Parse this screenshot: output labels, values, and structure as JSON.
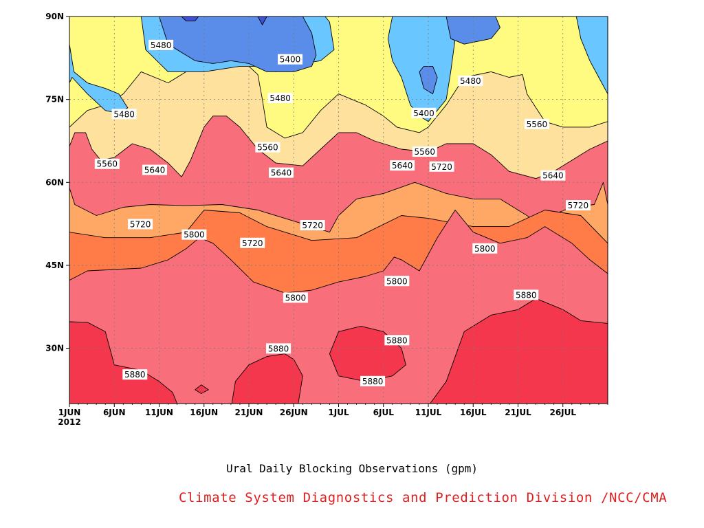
{
  "chart_data": {
    "type": "contour",
    "title": "Ural Daily Blocking Observations (gpm)",
    "credit": "Climate System Diagnostics and Prediction Division /NCC/CMA",
    "x_ticks": [
      "1JUN",
      "6JUN",
      "11JUN",
      "16JUN",
      "21JUN",
      "26JUN",
      "1JUL",
      "6JUL",
      "11JUL",
      "16JUL",
      "21JUL",
      "26JUL"
    ],
    "x_tick_days": [
      1,
      6,
      11,
      16,
      21,
      26,
      31,
      36,
      41,
      46,
      51,
      56
    ],
    "x_year_label": "2012",
    "xlim": [
      1,
      61
    ],
    "y_ticks": [
      "30N",
      "45N",
      "60N",
      "75N",
      "90N"
    ],
    "y_tick_lats": [
      30,
      45,
      60,
      75,
      90
    ],
    "ylim": [
      20,
      90
    ],
    "grid": "dotted",
    "contour_levels": [
      5400,
      5480,
      5560,
      5640,
      5720,
      5800,
      5880
    ],
    "level_colors": {
      "below_5400": "#5a8cea",
      "5400_5480": "#6ac6ff",
      "5480_5560": "#fffb80",
      "5560_5640": "#ffe19e",
      "5640_5720": "#ffa866",
      "5720_5800": "#ff7c48",
      "5800_5880": "#f86e7a",
      "above_5880": "#f5374d",
      "darkest": "#3f50d9"
    },
    "contour_labels": [
      {
        "text": "5480",
        "day": 11.2,
        "lat": 84.8
      },
      {
        "text": "5400",
        "day": 25.6,
        "lat": 82.2
      },
      {
        "text": "5480",
        "day": 24.5,
        "lat": 75.2
      },
      {
        "text": "5480",
        "day": 7.1,
        "lat": 72.3
      },
      {
        "text": "5400",
        "day": 40.5,
        "lat": 72.5
      },
      {
        "text": "5480",
        "day": 45.7,
        "lat": 78.3
      },
      {
        "text": "5560",
        "day": 23.1,
        "lat": 66.3
      },
      {
        "text": "5560",
        "day": 40.6,
        "lat": 65.5
      },
      {
        "text": "5560",
        "day": 53.1,
        "lat": 70.5
      },
      {
        "text": "5560",
        "day": 5.2,
        "lat": 63.3
      },
      {
        "text": "5640",
        "day": 10.5,
        "lat": 62.2
      },
      {
        "text": "5640",
        "day": 24.6,
        "lat": 61.7
      },
      {
        "text": "5640",
        "day": 38.1,
        "lat": 63.0
      },
      {
        "text": "5720",
        "day": 42.5,
        "lat": 62.8
      },
      {
        "text": "5640",
        "day": 54.9,
        "lat": 61.2
      },
      {
        "text": "5720",
        "day": 8.9,
        "lat": 52.4
      },
      {
        "text": "5800",
        "day": 14.9,
        "lat": 50.5
      },
      {
        "text": "5720",
        "day": 21.4,
        "lat": 49.0
      },
      {
        "text": "5720",
        "day": 28.1,
        "lat": 52.2
      },
      {
        "text": "5720",
        "day": 57.7,
        "lat": 55.8
      },
      {
        "text": "5800",
        "day": 47.3,
        "lat": 48.0
      },
      {
        "text": "5800",
        "day": 37.5,
        "lat": 42.1
      },
      {
        "text": "5800",
        "day": 26.2,
        "lat": 39.1
      },
      {
        "text": "5880",
        "day": 51.9,
        "lat": 39.6
      },
      {
        "text": "5880",
        "day": 37.5,
        "lat": 31.4
      },
      {
        "text": "5880",
        "day": 24.3,
        "lat": 29.9
      },
      {
        "text": "5880",
        "day": 8.3,
        "lat": 25.2
      },
      {
        "text": "5880",
        "day": 34.8,
        "lat": 24.0
      }
    ],
    "regions": [
      {
        "level": "5640_5720",
        "points": [
          [
            1,
            20
          ],
          [
            1,
            59
          ],
          [
            1.6,
            56
          ],
          [
            4,
            54
          ],
          [
            7,
            55.5
          ],
          [
            10,
            56
          ],
          [
            14,
            55.8
          ],
          [
            18,
            56
          ],
          [
            22,
            55
          ],
          [
            26,
            53
          ],
          [
            30,
            51
          ],
          [
            31,
            54
          ],
          [
            33,
            57
          ],
          [
            36,
            58
          ],
          [
            39.5,
            60
          ],
          [
            43,
            58
          ],
          [
            46,
            57
          ],
          [
            49,
            57
          ],
          [
            51,
            55
          ],
          [
            53,
            53
          ],
          [
            57,
            55.5
          ],
          [
            59.5,
            56
          ],
          [
            60.5,
            60
          ],
          [
            61,
            56
          ],
          [
            61,
            20
          ]
        ]
      },
      {
        "level": "5720_5800",
        "points": [
          [
            1,
            20
          ],
          [
            1,
            51
          ],
          [
            5,
            50
          ],
          [
            10,
            50
          ],
          [
            14,
            51
          ],
          [
            16,
            55
          ],
          [
            20,
            54.5
          ],
          [
            23,
            52
          ],
          [
            28,
            49.5
          ],
          [
            33,
            50
          ],
          [
            38,
            54
          ],
          [
            41,
            53.5
          ],
          [
            46,
            52
          ],
          [
            50,
            52
          ],
          [
            54,
            55
          ],
          [
            58,
            54
          ],
          [
            61,
            49
          ],
          [
            61,
            20
          ]
        ]
      },
      {
        "level": "5800_5880",
        "points": [
          [
            1,
            20
          ],
          [
            1,
            42.3
          ],
          [
            3,
            44
          ],
          [
            9,
            44.5
          ],
          [
            12,
            46
          ],
          [
            14,
            48
          ],
          [
            15.5,
            50
          ],
          [
            17,
            49
          ],
          [
            19,
            46
          ],
          [
            21.5,
            42
          ],
          [
            25,
            40
          ],
          [
            28,
            40.5
          ],
          [
            31,
            42
          ],
          [
            34,
            43
          ],
          [
            36,
            44
          ],
          [
            37.2,
            46.5
          ],
          [
            38,
            46
          ],
          [
            40,
            44
          ],
          [
            42,
            50
          ],
          [
            44,
            55
          ],
          [
            46,
            51
          ],
          [
            49,
            49
          ],
          [
            52,
            50
          ],
          [
            54,
            52
          ],
          [
            57,
            49
          ],
          [
            59,
            46
          ],
          [
            61,
            43.5
          ],
          [
            61,
            20
          ]
        ]
      },
      {
        "level": "above_5880",
        "points": [
          [
            1,
            20
          ],
          [
            1,
            34.8
          ],
          [
            3,
            34.7
          ],
          [
            5,
            33
          ],
          [
            6,
            27
          ],
          [
            9,
            26
          ],
          [
            11,
            24
          ],
          [
            12.5,
            22
          ],
          [
            13,
            20
          ]
        ]
      },
      {
        "level": "above_5880",
        "points": [
          [
            19.1,
            20
          ],
          [
            19.5,
            24
          ],
          [
            21,
            27
          ],
          [
            23,
            28.5
          ],
          [
            25,
            29
          ],
          [
            26,
            28
          ],
          [
            27,
            25
          ],
          [
            26.5,
            20
          ]
        ]
      },
      {
        "level": "above_5880",
        "points": [
          [
            15,
            22.5
          ],
          [
            15.7,
            23.4
          ],
          [
            16.5,
            22.5
          ],
          [
            15.7,
            21.8
          ]
        ]
      },
      {
        "level": "above_5880",
        "points": [
          [
            41.2,
            20
          ],
          [
            43,
            24
          ],
          [
            45,
            33
          ],
          [
            48,
            36
          ],
          [
            51,
            37
          ],
          [
            53,
            39
          ],
          [
            56,
            37
          ],
          [
            58,
            35
          ],
          [
            61,
            34.5
          ],
          [
            61,
            20
          ]
        ]
      },
      {
        "level": "above_5880",
        "points": [
          [
            30,
            29
          ],
          [
            31,
            33
          ],
          [
            33.5,
            34
          ],
          [
            36,
            33
          ],
          [
            38,
            30
          ],
          [
            38.5,
            27
          ],
          [
            37,
            25
          ],
          [
            34,
            24
          ],
          [
            31,
            25
          ]
        ]
      },
      {
        "level": "5560_5640",
        "points": [
          [
            1,
            66.5
          ],
          [
            1.6,
            69
          ],
          [
            2.8,
            69
          ],
          [
            3.5,
            66
          ],
          [
            4.5,
            64
          ],
          [
            6,
            64.5
          ],
          [
            8,
            67
          ],
          [
            10,
            66
          ],
          [
            12,
            63.5
          ],
          [
            13.5,
            61
          ],
          [
            14.5,
            64
          ],
          [
            16,
            70
          ],
          [
            17,
            72
          ],
          [
            18.5,
            72
          ],
          [
            20,
            70
          ],
          [
            22,
            66
          ],
          [
            24,
            63.5
          ],
          [
            27,
            63
          ],
          [
            29,
            66
          ],
          [
            31,
            69
          ],
          [
            33,
            69
          ],
          [
            35,
            67.5
          ],
          [
            38,
            66
          ],
          [
            41,
            65.5
          ],
          [
            43,
            67
          ],
          [
            46,
            67
          ],
          [
            48,
            65
          ],
          [
            50,
            62
          ],
          [
            53,
            60.7
          ],
          [
            55,
            62
          ],
          [
            57,
            64
          ],
          [
            59,
            66
          ],
          [
            61,
            67.5
          ],
          [
            61,
            90
          ],
          [
            1,
            90
          ]
        ]
      },
      {
        "level": "5480_5560",
        "points": [
          [
            1,
            70
          ],
          [
            3,
            73
          ],
          [
            5,
            74
          ],
          [
            7,
            76
          ],
          [
            9,
            80
          ],
          [
            12,
            78
          ],
          [
            15,
            81
          ],
          [
            19,
            81.5
          ],
          [
            21,
            81
          ],
          [
            22,
            79.5
          ],
          [
            22.5,
            75
          ],
          [
            23,
            70
          ],
          [
            25,
            68
          ],
          [
            27,
            69
          ],
          [
            29,
            73
          ],
          [
            31,
            76
          ],
          [
            34,
            74
          ],
          [
            36,
            72
          ],
          [
            37.5,
            70
          ],
          [
            40,
            69
          ],
          [
            41,
            70
          ],
          [
            43,
            74
          ],
          [
            45,
            79
          ],
          [
            48,
            80
          ],
          [
            50,
            79
          ],
          [
            51.5,
            79.5
          ],
          [
            52,
            76
          ],
          [
            54,
            71
          ],
          [
            56,
            70
          ],
          [
            59,
            70
          ],
          [
            61,
            71
          ],
          [
            61,
            90
          ],
          [
            1,
            90
          ]
        ]
      },
      {
        "level": "5400_5480",
        "points": [
          [
            1,
            85
          ],
          [
            1.5,
            80
          ],
          [
            3,
            78
          ],
          [
            5,
            77
          ],
          [
            6.5,
            76
          ],
          [
            7.5,
            73.5
          ],
          [
            6.5,
            72.5
          ],
          [
            5,
            73
          ],
          [
            3,
            76
          ],
          [
            1.3,
            79
          ],
          [
            1,
            78
          ]
        ]
      },
      {
        "level": "5400_5480",
        "points": [
          [
            9,
            90
          ],
          [
            9.5,
            84
          ],
          [
            12,
            80
          ],
          [
            16,
            80
          ],
          [
            20,
            81
          ],
          [
            22,
            81
          ],
          [
            24,
            80
          ],
          [
            27,
            81.5
          ],
          [
            29,
            82
          ],
          [
            30.5,
            84
          ],
          [
            30,
            89
          ],
          [
            29.5,
            90
          ]
        ]
      },
      {
        "level": "5400_5480",
        "points": [
          [
            37,
            90
          ],
          [
            36.5,
            86
          ],
          [
            37,
            82
          ],
          [
            38,
            79
          ],
          [
            39,
            74
          ],
          [
            40,
            72
          ],
          [
            41,
            71
          ],
          [
            42,
            73
          ],
          [
            43,
            75
          ],
          [
            43.5,
            80
          ],
          [
            44,
            86
          ],
          [
            44.5,
            90
          ]
        ]
      },
      {
        "level": "5400_5480",
        "points": [
          [
            57.5,
            90
          ],
          [
            58,
            86
          ],
          [
            59,
            82
          ],
          [
            60,
            79
          ],
          [
            61,
            76
          ],
          [
            61,
            90
          ]
        ]
      },
      {
        "level": "below_5400",
        "points": [
          [
            11,
            90
          ],
          [
            12,
            85
          ],
          [
            15,
            82
          ],
          [
            17,
            81.5
          ],
          [
            19,
            82
          ],
          [
            21,
            81.5
          ],
          [
            23,
            80
          ],
          [
            26,
            80
          ],
          [
            28,
            81
          ],
          [
            28.5,
            83
          ],
          [
            28,
            87
          ],
          [
            27,
            90
          ]
        ]
      },
      {
        "level": "below_5400",
        "points": [
          [
            40,
            80
          ],
          [
            40.5,
            77
          ],
          [
            41.5,
            76
          ],
          [
            42,
            79
          ],
          [
            41.5,
            81
          ],
          [
            40.5,
            81
          ]
        ]
      },
      {
        "level": "below_5400",
        "points": [
          [
            43,
            90
          ],
          [
            43.5,
            86
          ],
          [
            45,
            85
          ],
          [
            48,
            86
          ],
          [
            49,
            88
          ],
          [
            48.5,
            90
          ]
        ]
      },
      {
        "level": "darkest",
        "points": [
          [
            13.5,
            90
          ],
          [
            14,
            89.2
          ],
          [
            15,
            89.2
          ],
          [
            15.4,
            90
          ]
        ]
      },
      {
        "level": "darkest",
        "points": [
          [
            22,
            90
          ],
          [
            22.5,
            88.5
          ],
          [
            23,
            90
          ]
        ]
      }
    ]
  }
}
